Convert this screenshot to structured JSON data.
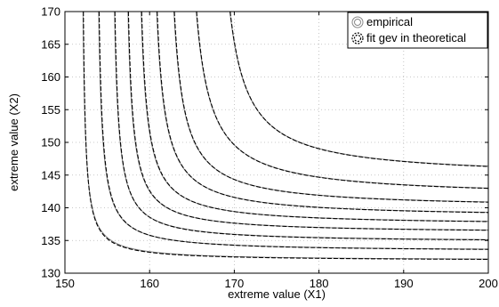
{
  "chart_data": {
    "type": "line",
    "xlabel": "extreme value (X1)",
    "ylabel": "extreme value (X2)",
    "xlim": [
      150,
      200
    ],
    "ylim": [
      130,
      170
    ],
    "xticks": [
      150,
      160,
      170,
      180,
      190,
      200
    ],
    "yticks": [
      130,
      135,
      140,
      145,
      150,
      155,
      160,
      165,
      170
    ],
    "grid": true,
    "legend": {
      "placement": "top-right",
      "entries": [
        "empirical",
        "fit gev in theoretical"
      ]
    },
    "contours": [
      {
        "x_asymptote": 151.9,
        "y_asymptote": 131.9,
        "x_at_170": 152.1,
        "y_at_200": 132.2
      },
      {
        "x_asymptote": 153.6,
        "y_asymptote": 133.3,
        "x_at_170": 154.1,
        "y_at_200": 133.6
      },
      {
        "x_asymptote": 155.4,
        "y_asymptote": 134.7,
        "x_at_170": 155.9,
        "y_at_200": 135.1
      },
      {
        "x_asymptote": 156.9,
        "y_asymptote": 136.1,
        "x_at_170": 157.6,
        "y_at_200": 136.5
      },
      {
        "x_asymptote": 158.3,
        "y_asymptote": 137.3,
        "x_at_170": 159.2,
        "y_at_200": 137.8
      },
      {
        "x_asymptote": 159.9,
        "y_asymptote": 138.5,
        "x_at_170": 161.0,
        "y_at_200": 139.2
      },
      {
        "x_asymptote": 161.7,
        "y_asymptote": 139.9,
        "x_at_170": 163.0,
        "y_at_200": 140.8
      },
      {
        "x_asymptote": 163.8,
        "y_asymptote": 141.6,
        "x_at_170": 165.4,
        "y_at_200": 143.1
      },
      {
        "x_asymptote": 167.3,
        "y_asymptote": 144.6,
        "x_at_170": 169.2,
        "y_at_200": 146.6
      }
    ],
    "series": [
      {
        "name": "empirical",
        "style": "solid",
        "color": "#888888"
      },
      {
        "name": "fit gev in theoretical",
        "style": "dashed",
        "color": "#000000"
      }
    ]
  }
}
